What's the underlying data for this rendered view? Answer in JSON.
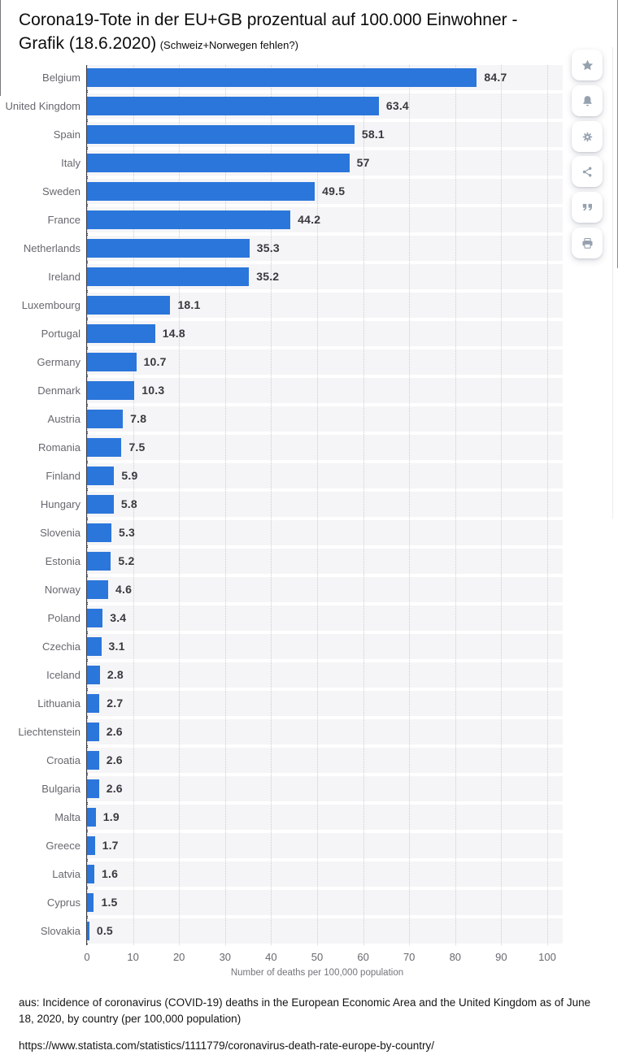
{
  "title": {
    "main": "Corona19-Tote in der EU+GB prozentual auf 100.000 Einwohner - Grafik (18.6.2020)",
    "note": "(Schweiz+Norwegen fehlen?)"
  },
  "toolbar": {
    "buttons": [
      {
        "label": "favorite",
        "icon": "star-icon"
      },
      {
        "label": "alerts",
        "icon": "bell-icon"
      },
      {
        "label": "settings",
        "icon": "gear-icon"
      },
      {
        "label": "share",
        "icon": "share-icon"
      },
      {
        "label": "cite",
        "icon": "quote-icon"
      },
      {
        "label": "print",
        "icon": "print-icon"
      }
    ]
  },
  "chart_data": {
    "type": "bar",
    "orientation": "horizontal",
    "categories": [
      "Belgium",
      "United Kingdom",
      "Spain",
      "Italy",
      "Sweden",
      "France",
      "Netherlands",
      "Ireland",
      "Luxembourg",
      "Portugal",
      "Germany",
      "Denmark",
      "Austria",
      "Romania",
      "Finland",
      "Hungary",
      "Slovenia",
      "Estonia",
      "Norway",
      "Poland",
      "Czechia",
      "Iceland",
      "Lithuania",
      "Liechtenstein",
      "Croatia",
      "Bulgaria",
      "Malta",
      "Greece",
      "Latvia",
      "Cyprus",
      "Slovakia"
    ],
    "values": [
      84.7,
      63.4,
      58.1,
      57,
      49.5,
      44.2,
      35.3,
      35.2,
      18.1,
      14.8,
      10.7,
      10.3,
      7.8,
      7.5,
      5.9,
      5.8,
      5.3,
      5.2,
      4.6,
      3.4,
      3.1,
      2.8,
      2.7,
      2.6,
      2.6,
      2.6,
      1.9,
      1.7,
      1.6,
      1.5,
      0.5
    ],
    "xlabel": "Number of deaths per 100,000 population",
    "xlim": [
      0,
      100
    ],
    "xticks": [
      0,
      10,
      20,
      30,
      40,
      50,
      60,
      70,
      80,
      90,
      100
    ],
    "grid": "dotted-vertical",
    "legend": "none",
    "bar_color": "#2b76db",
    "row_band_color": "#f5f5f7",
    "axis_line_color": "#3d3d43"
  },
  "footer": {
    "source": "aus: Incidence of coronavirus (COVID-19) deaths in the European Economic Area and the United Kingdom as of June 18, 2020, by country (per 100,000 population)",
    "url": "https://www.statista.com/statistics/1111779/coronavirus-death-rate-europe-by-country/"
  }
}
